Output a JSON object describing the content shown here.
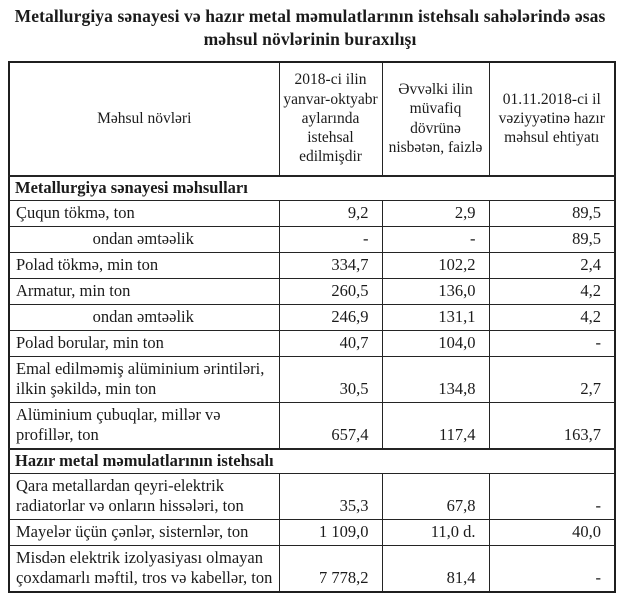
{
  "title": "Metallurgiya sənayesi və hazır metal məmulatlarının istehsalı sahələrində əsas məhsul növlərinin buraxılışı",
  "table": {
    "columns": [
      "Məhsul növləri",
      "2018-ci ilin yanvar-oktyabr aylarında istehsal edilmişdir",
      "Əvvəlki ilin müvafiq dövrünə nisbətən, faizlə",
      "01.11.2018-ci il vəziyyətinə hazır məhsul ehtiyatı"
    ],
    "sections": [
      {
        "header": "Metallurgiya sənayesi məhsulları",
        "rows": [
          {
            "name": "Çuqun tökmə, ton",
            "produced": "9,2",
            "change": "2,9",
            "stock": "89,5"
          },
          {
            "name": "ondan əmtəəlik",
            "produced": "-",
            "change": "-",
            "stock": "89,5"
          },
          {
            "name": "Polad tökmə, min ton",
            "produced": "334,7",
            "change": "102,2",
            "stock": "2,4"
          },
          {
            "name": "Armatur, min ton",
            "produced": "260,5",
            "change": "136,0",
            "stock": "4,2"
          },
          {
            "name": "ondan əmtəəlik",
            "produced": "246,9",
            "change": "131,1",
            "stock": "4,2"
          },
          {
            "name": "Polad borular,  min ton",
            "produced": "40,7",
            "change": "104,0",
            "stock": "-"
          },
          {
            "name": "Emal edilməmiş alüminium ərintiləri, ilkin şəkildə, min ton",
            "produced": "30,5",
            "change": "134,8",
            "stock": "2,7"
          },
          {
            "name": "Alüminium çubuqlar, millər və profillər, ton",
            "produced": "657,4",
            "change": "117,4",
            "stock": "163,7"
          }
        ]
      },
      {
        "header": "Hazır metal məmulatlarının istehsalı",
        "rows": [
          {
            "name": "Qara metallardan qeyri-elektrik radiatorlar və onların hissələri, ton",
            "produced": "35,3",
            "change": "67,8",
            "stock": "-"
          },
          {
            "name": "Mayelər üçün çənlər, sisternlər, ton",
            "produced": "1 109,0",
            "change": "11,0 d.",
            "stock": "40,0"
          },
          {
            "name": "Misdən elektrik izolyasiyası olmayan çoxdamarlı məftil, tros və kabellər, ton",
            "produced": "7 778,2",
            "change": "81,4",
            "stock": "-"
          }
        ]
      }
    ]
  }
}
